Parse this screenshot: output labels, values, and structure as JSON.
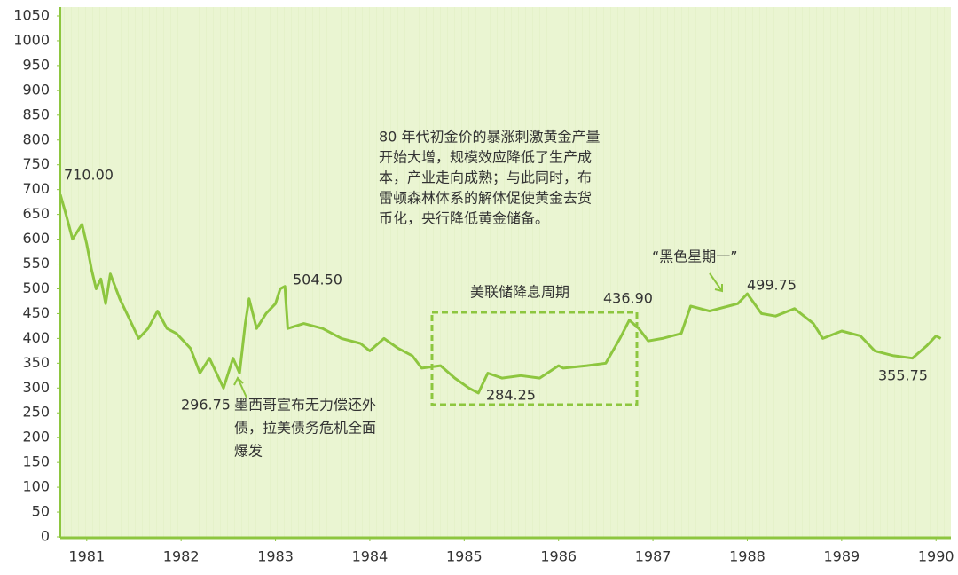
{
  "chart_data": {
    "type": "line",
    "x": [
      1980.72,
      1980.78,
      1980.85,
      1980.95,
      1981.0,
      1981.05,
      1981.1,
      1981.15,
      1981.2,
      1981.25,
      1981.35,
      1981.45,
      1981.55,
      1981.65,
      1981.75,
      1981.85,
      1981.95,
      1982.1,
      1982.2,
      1982.3,
      1982.4,
      1982.45,
      1982.55,
      1982.62,
      1982.68,
      1982.72,
      1982.8,
      1982.9,
      1983.0,
      1983.05,
      1983.1,
      1983.13,
      1983.3,
      1983.5,
      1983.7,
      1983.9,
      1984.0,
      1984.15,
      1984.3,
      1984.45,
      1984.55,
      1984.75,
      1984.9,
      1985.05,
      1985.15,
      1985.25,
      1985.4,
      1985.6,
      1985.8,
      1986.0,
      1986.05,
      1986.3,
      1986.5,
      1986.65,
      1986.75,
      1986.85,
      1986.95,
      1987.1,
      1987.3,
      1987.4,
      1987.6,
      1987.8,
      1987.9,
      1988.0,
      1988.15,
      1988.3,
      1988.5,
      1988.7,
      1988.8,
      1989.0,
      1989.2,
      1989.35,
      1989.55,
      1989.75,
      1989.9,
      1990.0,
      1990.05
    ],
    "values": [
      690,
      650,
      600,
      630,
      590,
      540,
      500,
      520,
      470,
      530,
      480,
      440,
      400,
      420,
      455,
      420,
      410,
      380,
      330,
      360,
      320,
      300,
      360,
      330,
      430,
      480,
      420,
      450,
      470,
      500,
      505,
      420,
      430,
      420,
      400,
      390,
      375,
      400,
      380,
      365,
      340,
      345,
      320,
      300,
      290,
      330,
      320,
      325,
      320,
      345,
      340,
      345,
      350,
      400,
      437,
      420,
      395,
      400,
      410,
      465,
      455,
      465,
      470,
      490,
      450,
      445,
      460,
      430,
      400,
      415,
      405,
      375,
      365,
      360,
      385,
      405,
      400
    ],
    "color": "#8dc63f",
    "xlim": [
      1980.72,
      1990.12
    ],
    "xticks": [
      1981,
      1982,
      1983,
      1984,
      1985,
      1986,
      1987,
      1988,
      1989,
      1990
    ],
    "ylim": [
      0,
      1050
    ],
    "yticks": [
      0,
      50,
      100,
      150,
      200,
      250,
      300,
      350,
      400,
      450,
      500,
      550,
      600,
      650,
      700,
      750,
      800,
      850,
      900,
      950,
      1000,
      1050
    ],
    "annotations": [
      "710.00",
      "504.50",
      "296.75",
      "284.25",
      "436.90",
      "499.75",
      "355.75",
      "美联储降息周期",
      "“黑色星期一”"
    ],
    "notes": [
      [
        "80 年代初金价的暴涨刺激黄金产量",
        "开始大增，规模效应降低了生产成",
        "本，产业走向成熟；与此同时，布",
        "雷顿森林体系的解体促使黄金去货",
        "币化，央行降低黄金储备。"
      ],
      [
        "墨西哥宣布无力偿还外",
        "债，拉美债务危机全面",
        "爆发"
      ]
    ]
  }
}
